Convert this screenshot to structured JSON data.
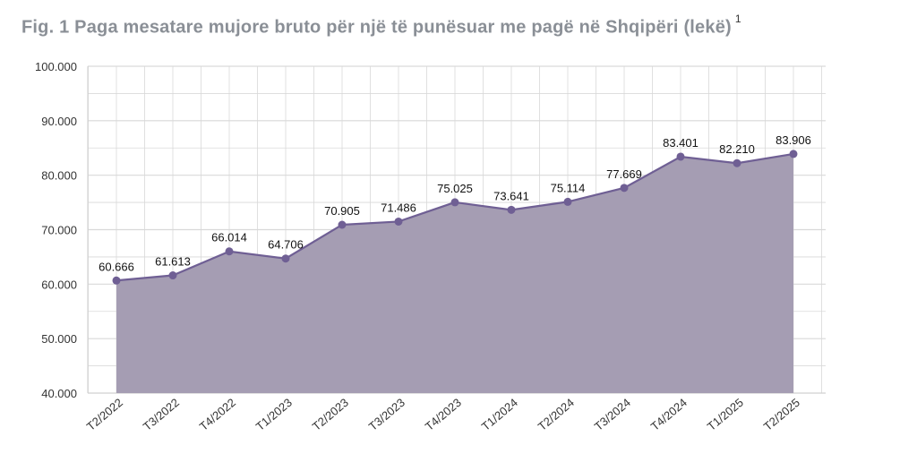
{
  "title": "Fig. 1 Paga mesatare  mujore bruto për një të punësuar me pagë në Shqipëri (lekë)",
  "footnote": "1",
  "colors": {
    "area": "#a59db3",
    "line": "#6f5f94",
    "grid": "#d9d9d9"
  },
  "chart_data": {
    "type": "area",
    "title": "Fig. 1 Paga mesatare  mujore bruto për një të punësuar me pagë në Shqipëri (lekë)",
    "categories": [
      "T2/2022",
      "T3/2022",
      "T4/2022",
      "T1/2023",
      "T2/2023",
      "T3/2023",
      "T4/2023",
      "T1/2024",
      "T2/2024",
      "T3/2024",
      "T4/2024",
      "T1/2025",
      "T2/2025"
    ],
    "values": [
      60666,
      61613,
      66014,
      64706,
      70905,
      71486,
      75025,
      73641,
      75114,
      77669,
      83401,
      82210,
      83906
    ],
    "value_labels": [
      "60.666",
      "61.613",
      "66.014",
      "64.706",
      "70.905",
      "71.486",
      "75.025",
      "73.641",
      "75.114",
      "77.669",
      "83.401",
      "82.210",
      "83.906"
    ],
    "ylim": [
      40000,
      100000
    ],
    "yticks": [
      40000,
      50000,
      60000,
      70000,
      80000,
      90000,
      100000
    ],
    "ytick_labels": [
      "40.000",
      "50.000",
      "60.000",
      "70.000",
      "80.000",
      "90.000",
      "100.000"
    ],
    "grid": true,
    "legend": "none"
  }
}
